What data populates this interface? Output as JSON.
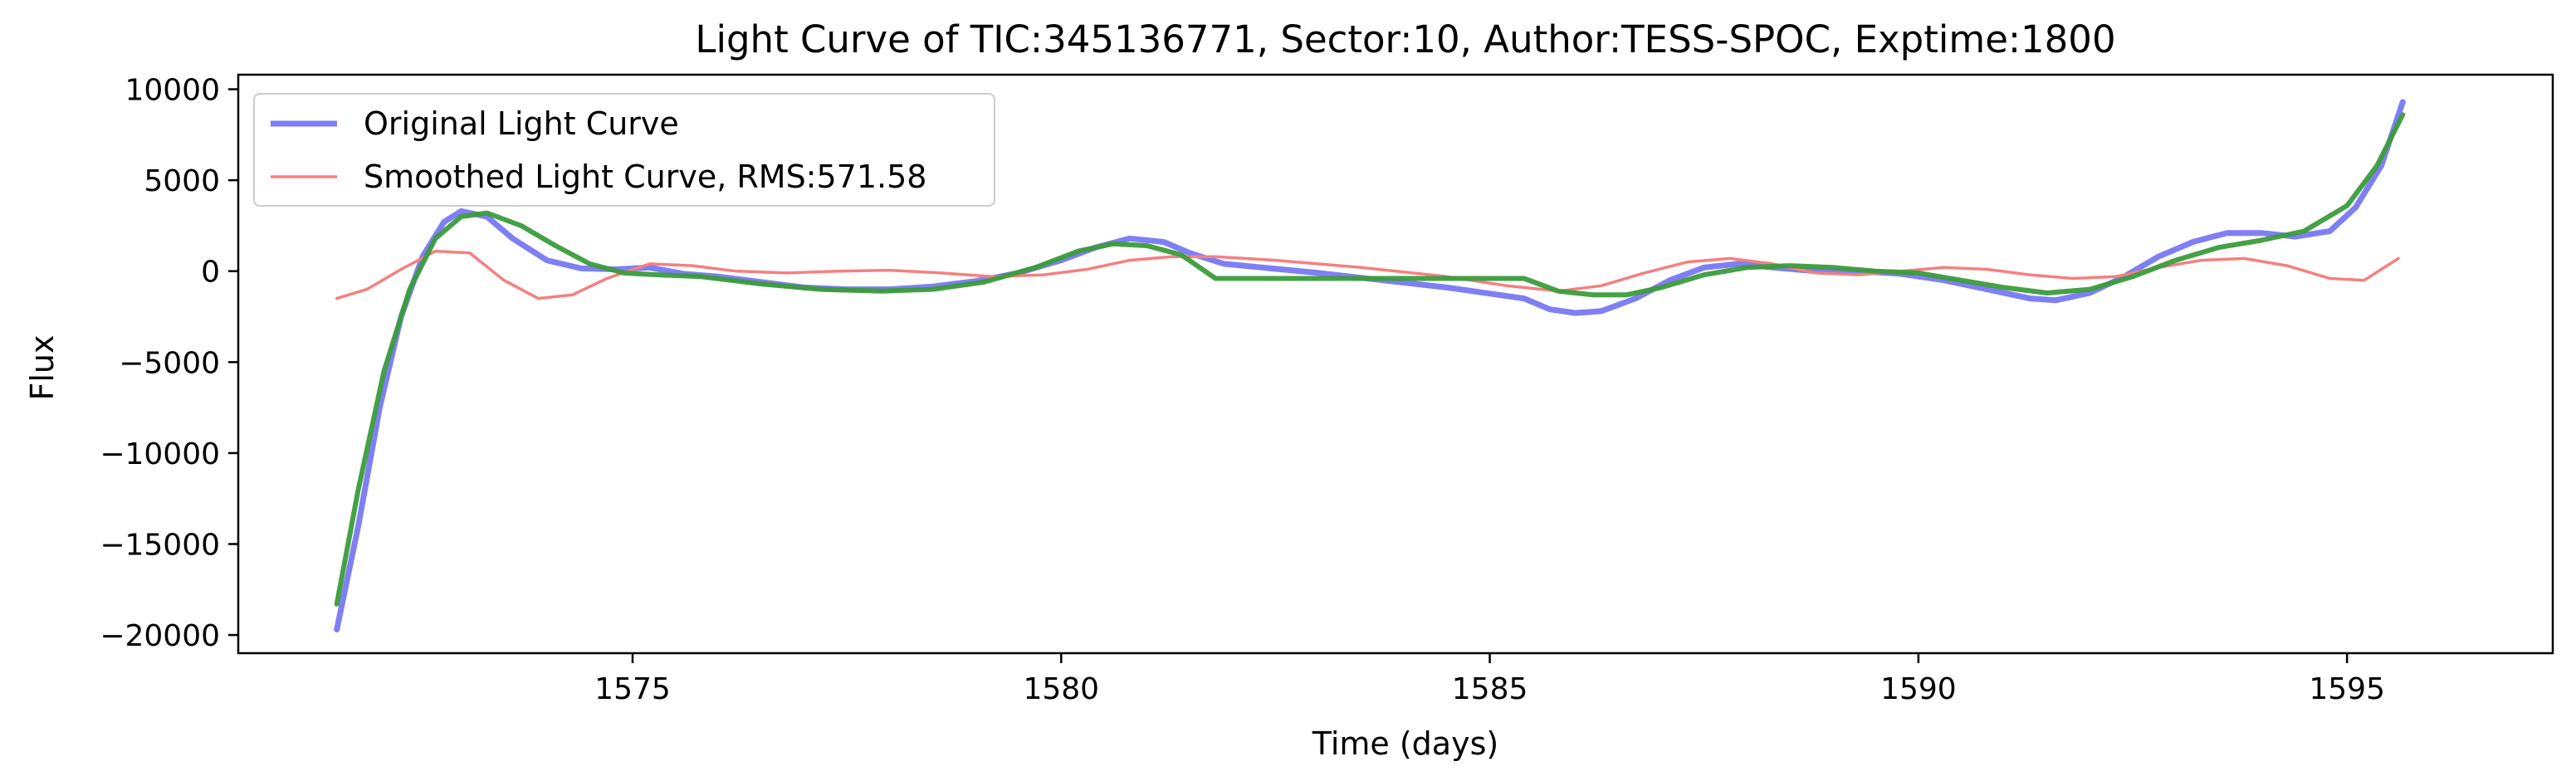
{
  "chart_data": {
    "type": "line",
    "title": "Light Curve of TIC:345136771, Sector:10, Author:TESS-SPOC, Exptime:1800",
    "xlabel": "Time (days)",
    "ylabel": "Flux",
    "xlim": [
      1570.4,
      1597.4
    ],
    "ylim": [
      -21000,
      10800
    ],
    "xticks": [
      1575,
      1580,
      1585,
      1590,
      1595
    ],
    "xtick_labels": [
      "1575",
      "1580",
      "1585",
      "1590",
      "1595"
    ],
    "yticks": [
      10000,
      5000,
      0,
      -5000,
      -10000,
      -15000,
      -20000
    ],
    "ytick_labels": [
      "10000",
      "5000",
      "0",
      "−5000",
      "−10000",
      "−15000",
      "−20000"
    ],
    "grid": false,
    "legend": {
      "position": "top-left"
    },
    "series": [
      {
        "name": "Original Light Curve",
        "color": "#7f7ff5",
        "x": [
          1571.55,
          1571.8,
          1572.05,
          1572.3,
          1572.55,
          1572.8,
          1573.0,
          1573.3,
          1573.6,
          1574.0,
          1574.4,
          1574.8,
          1575.2,
          1575.6,
          1576.0,
          1576.5,
          1577.0,
          1577.5,
          1578.0,
          1578.5,
          1579.0,
          1579.5,
          1580.0,
          1580.4,
          1580.8,
          1581.2,
          1581.5,
          1581.9,
          1583.0,
          1584.5,
          1585.4,
          1585.7,
          1586.0,
          1586.3,
          1586.7,
          1587.1,
          1587.5,
          1587.9,
          1588.3,
          1588.8,
          1589.3,
          1589.8,
          1590.3,
          1590.8,
          1591.3,
          1591.6,
          1592.0,
          1592.4,
          1592.8,
          1593.2,
          1593.6,
          1594.0,
          1594.4,
          1594.8,
          1595.1,
          1595.4,
          1595.65
        ],
        "y": [
          -19700,
          -14000,
          -7500,
          -2500,
          800,
          2700,
          3300,
          3000,
          1800,
          600,
          150,
          100,
          200,
          -150,
          -300,
          -600,
          -900,
          -1000,
          -1000,
          -850,
          -550,
          -100,
          600,
          1300,
          1800,
          1600,
          1000,
          400,
          -100,
          -900,
          -1500,
          -2100,
          -2300,
          -2200,
          -1500,
          -500,
          200,
          400,
          200,
          0,
          0,
          -150,
          -500,
          -1000,
          -1500,
          -1600,
          -1200,
          -300,
          800,
          1600,
          2100,
          2100,
          1900,
          2200,
          3500,
          5800,
          9300
        ]
      },
      {
        "name": "Smoothed Light Curve, RMS:571.58",
        "color": "#f58080",
        "x": [
          1571.55,
          1571.9,
          1572.3,
          1572.7,
          1573.1,
          1573.5,
          1573.9,
          1574.3,
          1574.7,
          1575.2,
          1575.7,
          1576.2,
          1576.8,
          1577.4,
          1578.0,
          1578.6,
          1579.2,
          1579.8,
          1580.3,
          1580.8,
          1581.3,
          1581.8,
          1582.5,
          1583.5,
          1584.5,
          1585.2,
          1585.8,
          1586.3,
          1586.8,
          1587.3,
          1587.8,
          1588.3,
          1588.8,
          1589.3,
          1589.8,
          1590.3,
          1590.8,
          1591.3,
          1591.8,
          1592.3,
          1592.8,
          1593.3,
          1593.8,
          1594.3,
          1594.8,
          1595.2,
          1595.6
        ],
        "y": [
          -1500,
          -1000,
          100,
          1100,
          1000,
          -500,
          -1500,
          -1300,
          -400,
          400,
          300,
          0,
          -100,
          0,
          50,
          -100,
          -300,
          -200,
          100,
          600,
          800,
          800,
          600,
          200,
          -300,
          -800,
          -1100,
          -800,
          -100,
          500,
          700,
          400,
          -100,
          -200,
          0,
          200,
          100,
          -200,
          -400,
          -300,
          200,
          600,
          700,
          300,
          -400,
          -500,
          700
        ]
      },
      {
        "name": "",
        "color": "#3b9c3b",
        "x": [
          1571.55,
          1571.8,
          1572.1,
          1572.4,
          1572.7,
          1573.0,
          1573.3,
          1573.7,
          1574.1,
          1574.5,
          1574.9,
          1575.3,
          1575.8,
          1576.5,
          1577.2,
          1577.9,
          1578.5,
          1579.1,
          1579.7,
          1580.2,
          1580.6,
          1581.0,
          1581.4,
          1581.8,
          1583.0,
          1584.5,
          1585.4,
          1585.8,
          1586.2,
          1586.6,
          1587.0,
          1587.5,
          1588.0,
          1588.5,
          1589.0,
          1589.5,
          1590.0,
          1590.5,
          1591.0,
          1591.5,
          1592.0,
          1592.5,
          1593.0,
          1593.5,
          1594.0,
          1594.5,
          1595.0,
          1595.35,
          1595.65
        ],
        "y": [
          -18300,
          -12000,
          -5500,
          -1000,
          1800,
          3000,
          3200,
          2500,
          1400,
          400,
          -100,
          -200,
          -300,
          -700,
          -1000,
          -1100,
          -1000,
          -600,
          200,
          1100,
          1500,
          1400,
          900,
          -400,
          -400,
          -400,
          -400,
          -1100,
          -1300,
          -1300,
          -900,
          -200,
          200,
          300,
          200,
          0,
          -100,
          -500,
          -900,
          -1200,
          -1000,
          -300,
          600,
          1300,
          1700,
          2200,
          3600,
          5800,
          8600
        ]
      }
    ]
  }
}
